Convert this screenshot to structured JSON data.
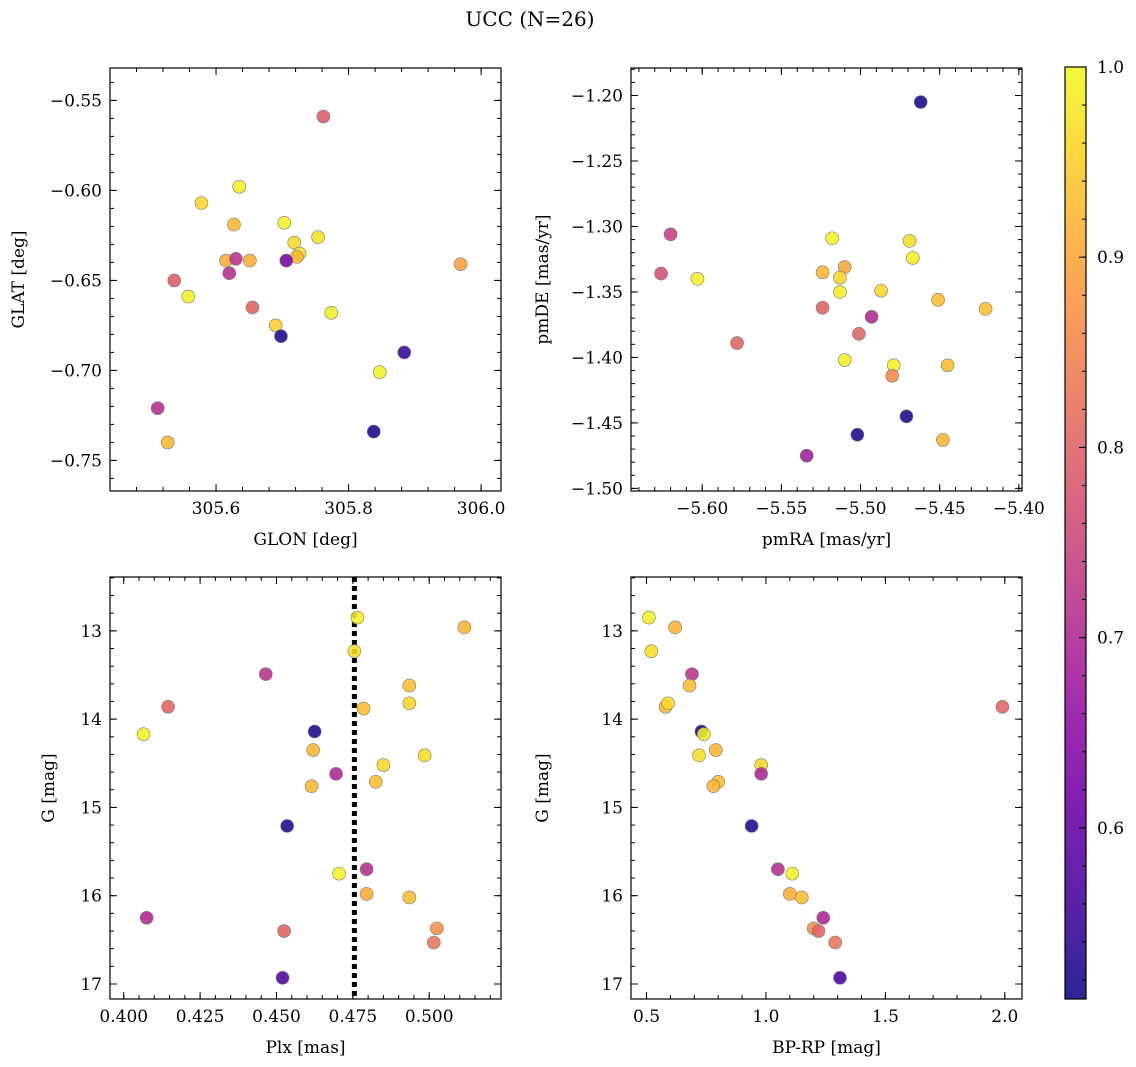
{
  "figure": {
    "title": "UCC (N=26)"
  },
  "colorbar": {
    "range": [
      0.51,
      1.0
    ],
    "ticks": [
      0.6,
      0.7,
      0.8,
      0.9,
      1.0
    ],
    "tick_labels": [
      "0.6",
      "0.7",
      "0.8",
      "0.9",
      "1.0"
    ],
    "colormap": "plasma"
  },
  "chart_data": [
    {
      "id": "glon-glat",
      "type": "scatter",
      "xlabel": "GLON [deg]",
      "ylabel": "GLAT [deg]",
      "xlim": [
        305.44,
        306.03
      ],
      "ylim": [
        -0.767,
        -0.532
      ],
      "xticks": [
        305.6,
        305.8,
        306.0
      ],
      "xtick_labels": [
        "305.6",
        "305.8",
        "306.0"
      ],
      "yticks": [
        -0.55,
        -0.6,
        -0.65,
        -0.7,
        -0.75
      ],
      "ytick_labels": [
        "−0.55",
        "−0.60",
        "−0.65",
        "−0.70",
        "−0.75"
      ],
      "points": [
        {
          "x": 305.762,
          "y": -0.559,
          "c": 0.79
        },
        {
          "x": 305.635,
          "y": -0.598,
          "c": 0.99
        },
        {
          "x": 305.578,
          "y": -0.607,
          "c": 0.96
        },
        {
          "x": 305.627,
          "y": -0.619,
          "c": 0.92
        },
        {
          "x": 305.703,
          "y": -0.618,
          "c": 0.99
        },
        {
          "x": 305.754,
          "y": -0.626,
          "c": 0.97
        },
        {
          "x": 305.718,
          "y": -0.629,
          "c": 0.96
        },
        {
          "x": 305.726,
          "y": -0.635,
          "c": 0.97
        },
        {
          "x": 305.722,
          "y": -0.637,
          "c": 0.92
        },
        {
          "x": 305.615,
          "y": -0.639,
          "c": 0.91
        },
        {
          "x": 305.651,
          "y": -0.639,
          "c": 0.91
        },
        {
          "x": 305.63,
          "y": -0.638,
          "c": 0.72
        },
        {
          "x": 305.706,
          "y": -0.639,
          "c": 0.62
        },
        {
          "x": 305.62,
          "y": -0.646,
          "c": 0.71
        },
        {
          "x": 305.537,
          "y": -0.65,
          "c": 0.79
        },
        {
          "x": 305.969,
          "y": -0.641,
          "c": 0.89
        },
        {
          "x": 305.558,
          "y": -0.659,
          "c": 0.99
        },
        {
          "x": 305.655,
          "y": -0.665,
          "c": 0.8
        },
        {
          "x": 305.774,
          "y": -0.668,
          "c": 0.99
        },
        {
          "x": 305.69,
          "y": -0.675,
          "c": 0.95
        },
        {
          "x": 305.698,
          "y": -0.681,
          "c": 0.52
        },
        {
          "x": 305.884,
          "y": -0.69,
          "c": 0.55
        },
        {
          "x": 305.847,
          "y": -0.701,
          "c": 0.99
        },
        {
          "x": 305.512,
          "y": -0.721,
          "c": 0.71
        },
        {
          "x": 305.838,
          "y": -0.734,
          "c": 0.52
        },
        {
          "x": 305.527,
          "y": -0.74,
          "c": 0.92
        }
      ]
    },
    {
      "id": "pmra-pmde",
      "type": "scatter",
      "xlabel": "pmRA [mas/yr]",
      "ylabel": "pmDE [mas/yr]",
      "xlim": [
        -5.645,
        -5.398
      ],
      "ylim": [
        -1.502,
        -1.179
      ],
      "xticks": [
        -5.6,
        -5.55,
        -5.5,
        -5.45,
        -5.4
      ],
      "xtick_labels": [
        "−5.60",
        "−5.55",
        "−5.50",
        "−5.45",
        "−5.40"
      ],
      "yticks": [
        -1.2,
        -1.25,
        -1.3,
        -1.35,
        -1.4,
        -1.45,
        -1.5
      ],
      "ytick_labels": [
        "−1.20",
        "−1.25",
        "−1.30",
        "−1.35",
        "−1.40",
        "−1.45",
        "−1.50"
      ],
      "points": [
        {
          "x": -5.462,
          "y": -1.205,
          "c": 0.52
        },
        {
          "x": -5.62,
          "y": -1.306,
          "c": 0.74
        },
        {
          "x": -5.626,
          "y": -1.336,
          "c": 0.77
        },
        {
          "x": -5.603,
          "y": -1.34,
          "c": 0.99
        },
        {
          "x": -5.518,
          "y": -1.309,
          "c": 0.99
        },
        {
          "x": -5.469,
          "y": -1.311,
          "c": 0.97
        },
        {
          "x": -5.467,
          "y": -1.324,
          "c": 0.99
        },
        {
          "x": -5.524,
          "y": -1.335,
          "c": 0.92
        },
        {
          "x": -5.51,
          "y": -1.331,
          "c": 0.9
        },
        {
          "x": -5.513,
          "y": -1.339,
          "c": 0.96
        },
        {
          "x": -5.513,
          "y": -1.35,
          "c": 0.99
        },
        {
          "x": -5.487,
          "y": -1.349,
          "c": 0.96
        },
        {
          "x": -5.451,
          "y": -1.356,
          "c": 0.93
        },
        {
          "x": -5.421,
          "y": -1.363,
          "c": 0.93
        },
        {
          "x": -5.524,
          "y": -1.362,
          "c": 0.8
        },
        {
          "x": -5.493,
          "y": -1.369,
          "c": 0.7
        },
        {
          "x": -5.501,
          "y": -1.382,
          "c": 0.8
        },
        {
          "x": -5.578,
          "y": -1.389,
          "c": 0.8
        },
        {
          "x": -5.51,
          "y": -1.402,
          "c": 0.99
        },
        {
          "x": -5.479,
          "y": -1.406,
          "c": 0.99
        },
        {
          "x": -5.445,
          "y": -1.406,
          "c": 0.93
        },
        {
          "x": -5.48,
          "y": -1.414,
          "c": 0.86
        },
        {
          "x": -5.471,
          "y": -1.445,
          "c": 0.52
        },
        {
          "x": -5.502,
          "y": -1.459,
          "c": 0.52
        },
        {
          "x": -5.448,
          "y": -1.463,
          "c": 0.92
        },
        {
          "x": -5.534,
          "y": -1.475,
          "c": 0.68
        }
      ]
    },
    {
      "id": "plx-g",
      "type": "scatter",
      "xlabel": "Plx [mas]",
      "ylabel": "G [mag]",
      "xlim": [
        0.3955,
        0.5235
      ],
      "ylim": [
        17.17,
        12.39
      ],
      "xticks": [
        0.4,
        0.425,
        0.45,
        0.475,
        0.5
      ],
      "xtick_labels": [
        "0.400",
        "0.425",
        "0.450",
        "0.475",
        "0.500"
      ],
      "yticks": [
        13,
        14,
        15,
        16,
        17
      ],
      "ytick_labels": [
        "13",
        "14",
        "15",
        "16",
        "17"
      ],
      "vline": {
        "x": 0.4755
      },
      "points": [
        {
          "x": 0.4765,
          "y": 12.85,
          "c": 0.99
        },
        {
          "x": 0.5115,
          "y": 12.96,
          "c": 0.92
        },
        {
          "x": 0.4755,
          "y": 13.23,
          "c": 0.97
        },
        {
          "x": 0.4465,
          "y": 13.49,
          "c": 0.72
        },
        {
          "x": 0.4935,
          "y": 13.62,
          "c": 0.93
        },
        {
          "x": 0.4935,
          "y": 13.82,
          "c": 0.96
        },
        {
          "x": 0.4145,
          "y": 13.86,
          "c": 0.8
        },
        {
          "x": 0.4785,
          "y": 13.88,
          "c": 0.93
        },
        {
          "x": 0.4625,
          "y": 14.14,
          "c": 0.52
        },
        {
          "x": 0.4065,
          "y": 14.17,
          "c": 0.99
        },
        {
          "x": 0.462,
          "y": 14.35,
          "c": 0.92
        },
        {
          "x": 0.4985,
          "y": 14.41,
          "c": 0.97
        },
        {
          "x": 0.485,
          "y": 14.52,
          "c": 0.96
        },
        {
          "x": 0.4695,
          "y": 14.62,
          "c": 0.7
        },
        {
          "x": 0.4825,
          "y": 14.71,
          "c": 0.93
        },
        {
          "x": 0.4615,
          "y": 14.76,
          "c": 0.92
        },
        {
          "x": 0.4535,
          "y": 15.21,
          "c": 0.53
        },
        {
          "x": 0.4795,
          "y": 15.7,
          "c": 0.71
        },
        {
          "x": 0.4705,
          "y": 15.75,
          "c": 0.99
        },
        {
          "x": 0.4795,
          "y": 15.98,
          "c": 0.91
        },
        {
          "x": 0.4935,
          "y": 16.02,
          "c": 0.93
        },
        {
          "x": 0.4075,
          "y": 16.25,
          "c": 0.7
        },
        {
          "x": 0.5025,
          "y": 16.37,
          "c": 0.87
        },
        {
          "x": 0.4525,
          "y": 16.4,
          "c": 0.8
        },
        {
          "x": 0.5015,
          "y": 16.53,
          "c": 0.83
        },
        {
          "x": 0.452,
          "y": 16.93,
          "c": 0.57
        }
      ]
    },
    {
      "id": "bprp-g",
      "type": "scatter",
      "xlabel": "BP-RP [mag]",
      "ylabel": "G [mag]",
      "xlim": [
        0.435,
        2.072
      ],
      "ylim": [
        17.17,
        12.39
      ],
      "xticks": [
        0.5,
        1.0,
        1.5,
        2.0
      ],
      "xtick_labels": [
        "0.5",
        "1.0",
        "1.5",
        "2.0"
      ],
      "yticks": [
        13,
        14,
        15,
        16,
        17
      ],
      "ytick_labels": [
        "13",
        "14",
        "15",
        "16",
        "17"
      ],
      "points": [
        {
          "x": 0.51,
          "y": 12.85,
          "c": 0.99
        },
        {
          "x": 0.52,
          "y": 13.23,
          "c": 0.97
        },
        {
          "x": 0.62,
          "y": 12.96,
          "c": 0.92
        },
        {
          "x": 0.69,
          "y": 13.49,
          "c": 0.72
        },
        {
          "x": 0.68,
          "y": 13.62,
          "c": 0.93
        },
        {
          "x": 0.58,
          "y": 13.86,
          "c": 0.93
        },
        {
          "x": 0.59,
          "y": 13.82,
          "c": 0.96
        },
        {
          "x": 1.99,
          "y": 13.86,
          "c": 0.8
        },
        {
          "x": 0.73,
          "y": 14.14,
          "c": 0.52
        },
        {
          "x": 0.74,
          "y": 14.17,
          "c": 0.99
        },
        {
          "x": 0.79,
          "y": 14.35,
          "c": 0.92
        },
        {
          "x": 0.72,
          "y": 14.41,
          "c": 0.97
        },
        {
          "x": 0.98,
          "y": 14.52,
          "c": 0.96
        },
        {
          "x": 0.98,
          "y": 14.62,
          "c": 0.7
        },
        {
          "x": 0.8,
          "y": 14.71,
          "c": 0.93
        },
        {
          "x": 0.78,
          "y": 14.76,
          "c": 0.92
        },
        {
          "x": 0.94,
          "y": 15.21,
          "c": 0.53
        },
        {
          "x": 1.05,
          "y": 15.7,
          "c": 0.71
        },
        {
          "x": 1.11,
          "y": 15.75,
          "c": 0.99
        },
        {
          "x": 1.1,
          "y": 15.98,
          "c": 0.91
        },
        {
          "x": 1.15,
          "y": 16.02,
          "c": 0.93
        },
        {
          "x": 1.24,
          "y": 16.25,
          "c": 0.7
        },
        {
          "x": 1.2,
          "y": 16.37,
          "c": 0.87
        },
        {
          "x": 1.22,
          "y": 16.4,
          "c": 0.8
        },
        {
          "x": 1.29,
          "y": 16.53,
          "c": 0.83
        },
        {
          "x": 1.31,
          "y": 16.93,
          "c": 0.57
        }
      ]
    }
  ]
}
